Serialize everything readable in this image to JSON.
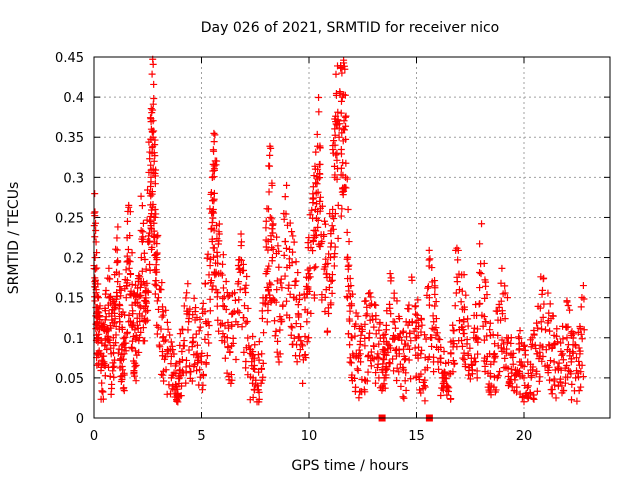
{
  "chart_data": {
    "type": "scatter",
    "title": "Day 026 of 2021, SRMTID for receiver nico",
    "xlabel": "GPS time / hours",
    "ylabel": "SRMTID / TECUs",
    "xlim": [
      0,
      24
    ],
    "ylim": [
      0,
      0.45
    ],
    "xticks": [
      0,
      5,
      10,
      15,
      20
    ],
    "xtick_labels": [
      "0",
      "5",
      "10",
      "15",
      "20"
    ],
    "yticks": [
      0,
      0.05,
      0.1,
      0.15,
      0.2,
      0.25,
      0.3,
      0.35,
      0.4,
      0.45
    ],
    "ytick_labels": [
      "0",
      "0.05",
      "0.1",
      "0.15",
      "0.2",
      "0.25",
      "0.3",
      "0.35",
      "0.4",
      "0.45"
    ],
    "grid": true,
    "marker_color": "#ff0000",
    "series": [
      {
        "name": "SRMTID",
        "marker": "plus",
        "points": [
          [
            0.0,
            0.19
          ],
          [
            0.05,
            0.2
          ],
          [
            0.1,
            0.16
          ],
          [
            0.15,
            0.12
          ],
          [
            0.2,
            0.1
          ],
          [
            0.3,
            0.08
          ],
          [
            0.4,
            0.07
          ],
          [
            0.5,
            0.09
          ],
          [
            0.6,
            0.11
          ],
          [
            0.7,
            0.13
          ],
          [
            0.8,
            0.08
          ],
          [
            0.9,
            0.1
          ],
          [
            1.0,
            0.14
          ],
          [
            1.1,
            0.17
          ],
          [
            1.2,
            0.12
          ],
          [
            1.3,
            0.09
          ],
          [
            1.4,
            0.08
          ],
          [
            1.5,
            0.15
          ],
          [
            1.6,
            0.21
          ],
          [
            1.7,
            0.18
          ],
          [
            1.8,
            0.13
          ],
          [
            1.9,
            0.11
          ],
          [
            2.0,
            0.1
          ],
          [
            2.1,
            0.14
          ],
          [
            2.2,
            0.2
          ],
          [
            2.3,
            0.17
          ],
          [
            2.4,
            0.12
          ],
          [
            2.5,
            0.22
          ],
          [
            2.6,
            0.28
          ],
          [
            2.65,
            0.3
          ],
          [
            2.7,
            0.33
          ],
          [
            2.75,
            0.35
          ],
          [
            2.8,
            0.32
          ],
          [
            2.85,
            0.25
          ],
          [
            2.9,
            0.2
          ],
          [
            3.0,
            0.15
          ],
          [
            3.2,
            0.1
          ],
          [
            3.4,
            0.08
          ],
          [
            3.6,
            0.05
          ],
          [
            3.8,
            0.03
          ],
          [
            3.9,
            0.02
          ],
          [
            4.0,
            0.06
          ],
          [
            4.2,
            0.09
          ],
          [
            4.4,
            0.12
          ],
          [
            4.6,
            0.1
          ],
          [
            4.8,
            0.08
          ],
          [
            5.0,
            0.07
          ],
          [
            5.2,
            0.12
          ],
          [
            5.4,
            0.19
          ],
          [
            5.5,
            0.22
          ],
          [
            5.55,
            0.26
          ],
          [
            5.6,
            0.28
          ],
          [
            5.7,
            0.24
          ],
          [
            5.8,
            0.18
          ],
          [
            6.0,
            0.14
          ],
          [
            6.2,
            0.1
          ],
          [
            6.4,
            0.09
          ],
          [
            6.6,
            0.12
          ],
          [
            6.8,
            0.16
          ],
          [
            7.0,
            0.14
          ],
          [
            7.2,
            0.09
          ],
          [
            7.4,
            0.05
          ],
          [
            7.6,
            0.04
          ],
          [
            7.8,
            0.08
          ],
          [
            8.0,
            0.18
          ],
          [
            8.1,
            0.22
          ],
          [
            8.2,
            0.25
          ],
          [
            8.3,
            0.2
          ],
          [
            8.5,
            0.16
          ],
          [
            8.7,
            0.12
          ],
          [
            8.9,
            0.22
          ],
          [
            9.1,
            0.19
          ],
          [
            9.3,
            0.15
          ],
          [
            9.5,
            0.13
          ],
          [
            9.7,
            0.09
          ],
          [
            9.9,
            0.12
          ],
          [
            10.0,
            0.18
          ],
          [
            10.2,
            0.22
          ],
          [
            10.3,
            0.26
          ],
          [
            10.4,
            0.31
          ],
          [
            10.5,
            0.27
          ],
          [
            10.6,
            0.22
          ],
          [
            10.8,
            0.16
          ],
          [
            11.0,
            0.2
          ],
          [
            11.1,
            0.26
          ],
          [
            11.2,
            0.3
          ],
          [
            11.3,
            0.33
          ],
          [
            11.4,
            0.35
          ],
          [
            11.5,
            0.38
          ],
          [
            11.55,
            0.4
          ],
          [
            11.6,
            0.36
          ],
          [
            11.7,
            0.3
          ],
          [
            11.8,
            0.2
          ],
          [
            11.9,
            0.14
          ],
          [
            12.0,
            0.1
          ],
          [
            12.2,
            0.08
          ],
          [
            12.4,
            0.07
          ],
          [
            12.6,
            0.09
          ],
          [
            12.8,
            0.1
          ],
          [
            13.0,
            0.09
          ],
          [
            13.2,
            0.08
          ],
          [
            13.4,
            0.06
          ],
          [
            13.5,
            0.05
          ],
          [
            13.6,
            0.11
          ],
          [
            13.8,
            0.13
          ],
          [
            14.0,
            0.1
          ],
          [
            14.2,
            0.08
          ],
          [
            14.4,
            0.06
          ],
          [
            14.6,
            0.09
          ],
          [
            14.8,
            0.12
          ],
          [
            15.0,
            0.1
          ],
          [
            15.2,
            0.08
          ],
          [
            15.4,
            0.06
          ],
          [
            15.6,
            0.15
          ],
          [
            15.8,
            0.12
          ],
          [
            16.0,
            0.07
          ],
          [
            16.2,
            0.05
          ],
          [
            16.4,
            0.04
          ],
          [
            16.6,
            0.08
          ],
          [
            16.8,
            0.14
          ],
          [
            17.0,
            0.16
          ],
          [
            17.2,
            0.12
          ],
          [
            17.4,
            0.08
          ],
          [
            17.6,
            0.06
          ],
          [
            17.8,
            0.1
          ],
          [
            18.0,
            0.18
          ],
          [
            18.2,
            0.12
          ],
          [
            18.4,
            0.08
          ],
          [
            18.6,
            0.07
          ],
          [
            18.8,
            0.09
          ],
          [
            19.0,
            0.13
          ],
          [
            19.2,
            0.1
          ],
          [
            19.4,
            0.08
          ],
          [
            19.6,
            0.06
          ],
          [
            19.8,
            0.07
          ],
          [
            20.0,
            0.05
          ],
          [
            20.2,
            0.04
          ],
          [
            20.4,
            0.06
          ],
          [
            20.6,
            0.08
          ],
          [
            20.8,
            0.12
          ],
          [
            21.0,
            0.11
          ],
          [
            21.2,
            0.09
          ],
          [
            21.4,
            0.07
          ],
          [
            21.6,
            0.06
          ],
          [
            21.8,
            0.08
          ],
          [
            22.0,
            0.1
          ],
          [
            22.2,
            0.07
          ],
          [
            22.4,
            0.05
          ],
          [
            22.6,
            0.08
          ],
          [
            22.8,
            0.11
          ]
        ]
      }
    ],
    "gap_markers": [
      13.4,
      15.6
    ]
  }
}
